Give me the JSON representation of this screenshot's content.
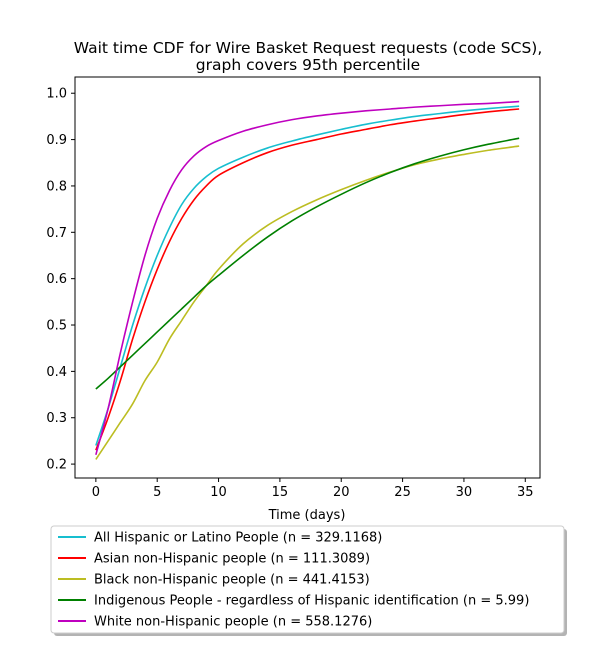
{
  "chart_data": {
    "type": "line",
    "title": [
      "Wait time CDF for Wire Basket Request  requests (code SCS),",
      "graph covers 95th percentile"
    ],
    "xlabel": "Time (days)",
    "ylabel": "",
    "xlim": [
      -1.7,
      36.2
    ],
    "ylim": [
      0.17,
      1.035
    ],
    "xticks": [
      0,
      5,
      10,
      15,
      20,
      25,
      30,
      35
    ],
    "xtick_labels": [
      "0",
      "5",
      "10",
      "15",
      "20",
      "25",
      "30",
      "35"
    ],
    "yticks": [
      0.2,
      0.3,
      0.4,
      0.5,
      0.6,
      0.7,
      0.8,
      0.9,
      1.0
    ],
    "ytick_labels": [
      "0.2",
      "0.3",
      "0.4",
      "0.5",
      "0.6",
      "0.7",
      "0.8",
      "0.9",
      "1.0"
    ],
    "grid": false,
    "legend_position": "below the plot",
    "x": [
      0,
      1,
      2,
      3,
      4,
      5,
      6,
      7,
      8,
      9,
      10,
      12,
      14,
      16,
      18,
      20,
      22,
      24,
      26,
      28,
      30,
      32,
      34.5
    ],
    "series": [
      {
        "name": "All Hispanic or Latino People (n = 329.1168)",
        "color": "#17becf",
        "values": [
          0.24,
          0.32,
          0.41,
          0.5,
          0.58,
          0.65,
          0.71,
          0.76,
          0.795,
          0.82,
          0.838,
          0.862,
          0.882,
          0.897,
          0.91,
          0.922,
          0.933,
          0.942,
          0.95,
          0.956,
          0.962,
          0.967,
          0.972
        ]
      },
      {
        "name": "Asian non-Hispanic people (n = 111.3089)",
        "color": "#ff0000",
        "values": [
          0.23,
          0.3,
          0.38,
          0.47,
          0.55,
          0.62,
          0.68,
          0.73,
          0.77,
          0.8,
          0.823,
          0.85,
          0.872,
          0.888,
          0.9,
          0.912,
          0.922,
          0.932,
          0.94,
          0.947,
          0.954,
          0.96,
          0.966
        ]
      },
      {
        "name": "Black non-Hispanic people (n = 441.4153)",
        "color": "#bcbd22",
        "values": [
          0.21,
          0.25,
          0.29,
          0.33,
          0.38,
          0.42,
          0.47,
          0.51,
          0.55,
          0.585,
          0.62,
          0.675,
          0.715,
          0.745,
          0.77,
          0.792,
          0.812,
          0.83,
          0.846,
          0.858,
          0.868,
          0.877,
          0.886
        ]
      },
      {
        "name": "Indigenous People - regardless of Hispanic identification (n = 5.99)",
        "color": "#008000",
        "values": [
          0.362,
          0.385,
          0.41,
          0.435,
          0.46,
          0.485,
          0.51,
          0.535,
          0.56,
          0.585,
          0.607,
          0.65,
          0.69,
          0.725,
          0.755,
          0.782,
          0.807,
          0.829,
          0.848,
          0.864,
          0.878,
          0.89,
          0.903
        ]
      },
      {
        "name": "White non-Hispanic people (n = 558.1276)",
        "color": "#bf00bf",
        "values": [
          0.22,
          0.32,
          0.44,
          0.55,
          0.65,
          0.73,
          0.79,
          0.835,
          0.865,
          0.885,
          0.898,
          0.918,
          0.932,
          0.943,
          0.951,
          0.957,
          0.962,
          0.966,
          0.97,
          0.973,
          0.976,
          0.978,
          0.982
        ]
      }
    ]
  }
}
